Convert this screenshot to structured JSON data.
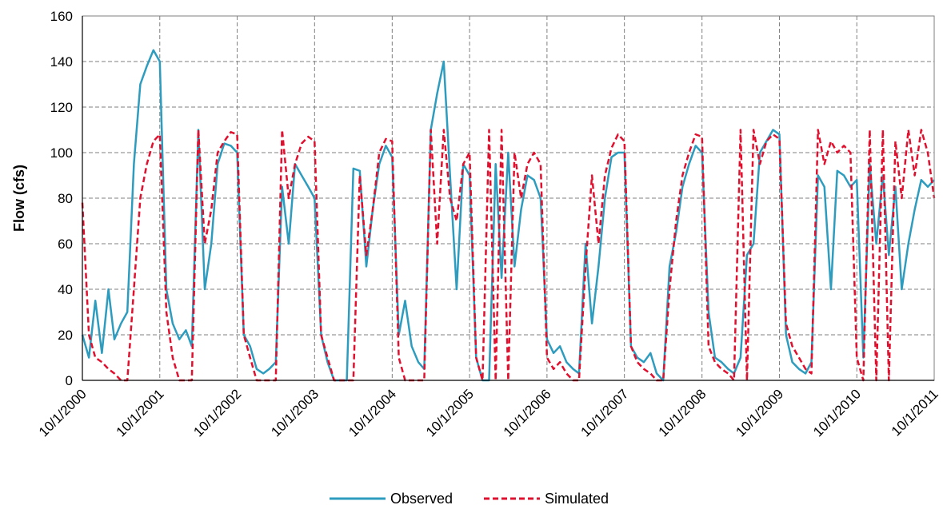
{
  "chart_data": {
    "type": "line",
    "title": "",
    "xlabel": "",
    "ylabel": "Flow (cfs)",
    "ylim": [
      0,
      160
    ],
    "yticks": [
      0,
      20,
      40,
      60,
      80,
      100,
      120,
      140,
      160
    ],
    "xlim": [
      "10/1/2000",
      "10/1/2011"
    ],
    "xticks": [
      "10/1/2000",
      "10/1/2001",
      "10/1/2002",
      "10/1/2003",
      "10/1/2004",
      "10/1/2005",
      "10/1/2006",
      "10/1/2007",
      "10/1/2008",
      "10/1/2009",
      "10/1/2010",
      "10/1/2011"
    ],
    "grid": true,
    "legend": "bottom-center",
    "series": [
      {
        "name": "Observed",
        "color": "#2E9CBF",
        "dash": "solid",
        "points": [
          [
            "10/1/2000",
            20
          ],
          [
            "11/1/2000",
            10
          ],
          [
            "12/1/2000",
            35
          ],
          [
            "1/1/2001",
            12
          ],
          [
            "2/1/2001",
            40
          ],
          [
            "3/1/2001",
            18
          ],
          [
            "4/1/2001",
            25
          ],
          [
            "5/1/2001",
            30
          ],
          [
            "6/1/2001",
            95
          ],
          [
            "7/1/2001",
            130
          ],
          [
            "8/1/2001",
            138
          ],
          [
            "9/1/2001",
            145
          ],
          [
            "10/1/2001",
            140
          ],
          [
            "11/1/2001",
            40
          ],
          [
            "12/1/2001",
            25
          ],
          [
            "1/1/2002",
            18
          ],
          [
            "2/1/2002",
            22
          ],
          [
            "3/1/2002",
            15
          ],
          [
            "4/1/2002",
            110
          ],
          [
            "5/1/2002",
            40
          ],
          [
            "6/1/2002",
            60
          ],
          [
            "7/1/2002",
            95
          ],
          [
            "8/1/2002",
            104
          ],
          [
            "9/1/2002",
            103
          ],
          [
            "10/1/2002",
            100
          ],
          [
            "11/1/2002",
            20
          ],
          [
            "12/1/2002",
            15
          ],
          [
            "1/1/2003",
            5
          ],
          [
            "2/1/2003",
            3
          ],
          [
            "3/1/2003",
            5
          ],
          [
            "4/1/2003",
            8
          ],
          [
            "5/1/2003",
            85
          ],
          [
            "6/1/2003",
            60
          ],
          [
            "7/1/2003",
            95
          ],
          [
            "8/1/2003",
            90
          ],
          [
            "9/1/2003",
            85
          ],
          [
            "10/1/2003",
            80
          ],
          [
            "11/1/2003",
            20
          ],
          [
            "12/1/2003",
            8
          ],
          [
            "1/1/2004",
            0
          ],
          [
            "2/1/2004",
            0
          ],
          [
            "3/1/2004",
            0
          ],
          [
            "4/1/2004",
            93
          ],
          [
            "5/1/2004",
            92
          ],
          [
            "6/1/2004",
            50
          ],
          [
            "7/1/2004",
            75
          ],
          [
            "8/1/2004",
            95
          ],
          [
            "9/1/2004",
            103
          ],
          [
            "10/1/2004",
            98
          ],
          [
            "11/1/2004",
            20
          ],
          [
            "12/1/2004",
            35
          ],
          [
            "1/1/2005",
            15
          ],
          [
            "2/1/2005",
            8
          ],
          [
            "3/1/2005",
            5
          ],
          [
            "4/1/2005",
            110
          ],
          [
            "5/1/2005",
            126
          ],
          [
            "6/1/2005",
            140
          ],
          [
            "7/1/2005",
            90
          ],
          [
            "8/1/2005",
            40
          ],
          [
            "9/1/2005",
            95
          ],
          [
            "10/1/2005",
            90
          ],
          [
            "11/1/2005",
            10
          ],
          [
            "12/1/2005",
            0
          ],
          [
            "1/1/2006",
            0
          ],
          [
            "2/1/2006",
            95
          ],
          [
            "3/1/2006",
            45
          ],
          [
            "4/1/2006",
            100
          ],
          [
            "5/1/2006",
            50
          ],
          [
            "6/1/2006",
            75
          ],
          [
            "7/1/2006",
            90
          ],
          [
            "8/1/2006",
            88
          ],
          [
            "9/1/2006",
            80
          ],
          [
            "10/1/2006",
            18
          ],
          [
            "11/1/2006",
            12
          ],
          [
            "12/1/2006",
            15
          ],
          [
            "1/1/2007",
            8
          ],
          [
            "2/1/2007",
            5
          ],
          [
            "3/1/2007",
            3
          ],
          [
            "4/1/2007",
            60
          ],
          [
            "5/1/2007",
            25
          ],
          [
            "6/1/2007",
            50
          ],
          [
            "7/1/2007",
            80
          ],
          [
            "8/1/2007",
            98
          ],
          [
            "9/1/2007",
            100
          ],
          [
            "10/1/2007",
            100
          ],
          [
            "11/1/2007",
            15
          ],
          [
            "12/1/2007",
            10
          ],
          [
            "1/1/2008",
            8
          ],
          [
            "2/1/2008",
            12
          ],
          [
            "3/1/2008",
            3
          ],
          [
            "4/1/2008",
            0
          ],
          [
            "5/1/2008",
            50
          ],
          [
            "6/1/2008",
            65
          ],
          [
            "7/1/2008",
            85
          ],
          [
            "8/1/2008",
            95
          ],
          [
            "9/1/2008",
            103
          ],
          [
            "10/1/2008",
            100
          ],
          [
            "11/1/2008",
            30
          ],
          [
            "12/1/2008",
            10
          ],
          [
            "1/1/2009",
            8
          ],
          [
            "2/1/2009",
            5
          ],
          [
            "3/1/2009",
            3
          ],
          [
            "4/1/2009",
            10
          ],
          [
            "5/1/2009",
            55
          ],
          [
            "6/1/2009",
            60
          ],
          [
            "7/1/2009",
            100
          ],
          [
            "8/1/2009",
            105
          ],
          [
            "9/1/2009",
            110
          ],
          [
            "10/1/2009",
            108
          ],
          [
            "11/1/2009",
            20
          ],
          [
            "12/1/2009",
            8
          ],
          [
            "1/1/2010",
            5
          ],
          [
            "2/1/2010",
            3
          ],
          [
            "3/1/2010",
            8
          ],
          [
            "4/1/2010",
            90
          ],
          [
            "5/1/2010",
            85
          ],
          [
            "6/1/2010",
            40
          ],
          [
            "7/1/2010",
            92
          ],
          [
            "8/1/2010",
            90
          ],
          [
            "9/1/2010",
            85
          ],
          [
            "10/1/2010",
            88
          ],
          [
            "11/1/2010",
            10
          ],
          [
            "12/1/2010",
            95
          ],
          [
            "1/1/2011",
            60
          ],
          [
            "2/1/2011",
            90
          ],
          [
            "3/1/2011",
            55
          ],
          [
            "4/1/2011",
            85
          ],
          [
            "5/1/2011",
            40
          ],
          [
            "6/1/2011",
            60
          ],
          [
            "7/1/2011",
            75
          ],
          [
            "8/1/2011",
            88
          ],
          [
            "9/1/2011",
            85
          ],
          [
            "10/1/2011",
            88
          ]
        ]
      },
      {
        "name": "Simulated",
        "color": "#E0102F",
        "dash": "dashed",
        "points": [
          [
            "10/1/2000",
            78
          ],
          [
            "11/1/2000",
            20
          ],
          [
            "12/1/2000",
            10
          ],
          [
            "1/1/2001",
            8
          ],
          [
            "2/1/2001",
            5
          ],
          [
            "3/1/2001",
            3
          ],
          [
            "4/1/2001",
            0
          ],
          [
            "5/1/2001",
            0
          ],
          [
            "6/1/2001",
            40
          ],
          [
            "7/1/2001",
            80
          ],
          [
            "8/1/2001",
            95
          ],
          [
            "9/1/2001",
            105
          ],
          [
            "10/1/2001",
            108
          ],
          [
            "11/1/2001",
            30
          ],
          [
            "12/1/2001",
            10
          ],
          [
            "1/1/2002",
            0
          ],
          [
            "2/1/2002",
            0
          ],
          [
            "3/1/2002",
            0
          ],
          [
            "4/1/2002",
            110
          ],
          [
            "5/1/2002",
            60
          ],
          [
            "6/1/2002",
            75
          ],
          [
            "7/1/2002",
            100
          ],
          [
            "8/1/2002",
            105
          ],
          [
            "9/1/2002",
            109
          ],
          [
            "10/1/2002",
            108
          ],
          [
            "11/1/2002",
            20
          ],
          [
            "12/1/2002",
            10
          ],
          [
            "1/1/2003",
            0
          ],
          [
            "2/1/2003",
            0
          ],
          [
            "3/1/2003",
            0
          ],
          [
            "4/1/2003",
            0
          ],
          [
            "5/1/2003",
            110
          ],
          [
            "6/1/2003",
            80
          ],
          [
            "7/1/2003",
            95
          ],
          [
            "8/1/2003",
            104
          ],
          [
            "9/1/2003",
            107
          ],
          [
            "10/1/2003",
            105
          ],
          [
            "11/1/2003",
            20
          ],
          [
            "12/1/2003",
            10
          ],
          [
            "1/1/2004",
            0
          ],
          [
            "2/1/2004",
            0
          ],
          [
            "3/1/2004",
            0
          ],
          [
            "4/1/2004",
            0
          ],
          [
            "5/1/2004",
            90
          ],
          [
            "6/1/2004",
            55
          ],
          [
            "7/1/2004",
            75
          ],
          [
            "8/1/2004",
            100
          ],
          [
            "9/1/2004",
            106
          ],
          [
            "10/1/2004",
            105
          ],
          [
            "11/1/2004",
            10
          ],
          [
            "12/1/2004",
            0
          ],
          [
            "1/1/2005",
            0
          ],
          [
            "2/1/2005",
            0
          ],
          [
            "3/1/2005",
            0
          ],
          [
            "4/1/2005",
            110
          ],
          [
            "5/1/2005",
            60
          ],
          [
            "6/1/2005",
            110
          ],
          [
            "7/1/2005",
            80
          ],
          [
            "8/1/2005",
            70
          ],
          [
            "9/1/2005",
            95
          ],
          [
            "10/1/2005",
            100
          ],
          [
            "11/1/2005",
            10
          ],
          [
            "12/1/2005",
            0
          ],
          [
            "1/1/2006",
            110
          ],
          [
            "2/1/2006",
            0
          ],
          [
            "3/1/2006",
            110
          ],
          [
            "4/1/2006",
            0
          ],
          [
            "5/1/2006",
            100
          ],
          [
            "6/1/2006",
            80
          ],
          [
            "7/1/2006",
            95
          ],
          [
            "8/1/2006",
            100
          ],
          [
            "9/1/2006",
            95
          ],
          [
            "10/1/2006",
            10
          ],
          [
            "11/1/2006",
            5
          ],
          [
            "12/1/2006",
            8
          ],
          [
            "1/1/2007",
            3
          ],
          [
            "2/1/2007",
            0
          ],
          [
            "3/1/2007",
            0
          ],
          [
            "4/1/2007",
            50
          ],
          [
            "5/1/2007",
            90
          ],
          [
            "6/1/2007",
            60
          ],
          [
            "7/1/2007",
            90
          ],
          [
            "8/1/2007",
            102
          ],
          [
            "9/1/2007",
            108
          ],
          [
            "10/1/2007",
            105
          ],
          [
            "11/1/2007",
            15
          ],
          [
            "12/1/2007",
            8
          ],
          [
            "1/1/2008",
            5
          ],
          [
            "2/1/2008",
            3
          ],
          [
            "3/1/2008",
            0
          ],
          [
            "4/1/2008",
            0
          ],
          [
            "5/1/2008",
            40
          ],
          [
            "6/1/2008",
            70
          ],
          [
            "7/1/2008",
            90
          ],
          [
            "8/1/2008",
            100
          ],
          [
            "9/1/2008",
            108
          ],
          [
            "10/1/2008",
            107
          ],
          [
            "11/1/2008",
            15
          ],
          [
            "12/1/2008",
            8
          ],
          [
            "1/1/2009",
            5
          ],
          [
            "2/1/2009",
            3
          ],
          [
            "3/1/2009",
            0
          ],
          [
            "4/1/2009",
            110
          ],
          [
            "5/1/2009",
            0
          ],
          [
            "6/1/2009",
            110
          ],
          [
            "7/1/2009",
            95
          ],
          [
            "8/1/2009",
            105
          ],
          [
            "9/1/2009",
            108
          ],
          [
            "10/1/2009",
            106
          ],
          [
            "11/1/2009",
            25
          ],
          [
            "12/1/2009",
            15
          ],
          [
            "1/1/2010",
            10
          ],
          [
            "2/1/2010",
            5
          ],
          [
            "3/1/2010",
            3
          ],
          [
            "4/1/2010",
            110
          ],
          [
            "5/1/2010",
            95
          ],
          [
            "6/1/2010",
            105
          ],
          [
            "7/1/2010",
            100
          ],
          [
            "8/1/2010",
            103
          ],
          [
            "9/1/2010",
            100
          ],
          [
            "10/1/2010",
            10
          ],
          [
            "11/1/2010",
            0
          ],
          [
            "12/1/2010",
            110
          ],
          [
            "1/1/2011",
            0
          ],
          [
            "2/1/2011",
            110
          ],
          [
            "3/1/2011",
            0
          ],
          [
            "4/1/2011",
            105
          ],
          [
            "5/1/2011",
            80
          ],
          [
            "6/1/2011",
            110
          ],
          [
            "7/1/2011",
            90
          ],
          [
            "8/1/2011",
            110
          ],
          [
            "9/1/2011",
            100
          ],
          [
            "10/1/2011",
            80
          ]
        ]
      }
    ]
  }
}
